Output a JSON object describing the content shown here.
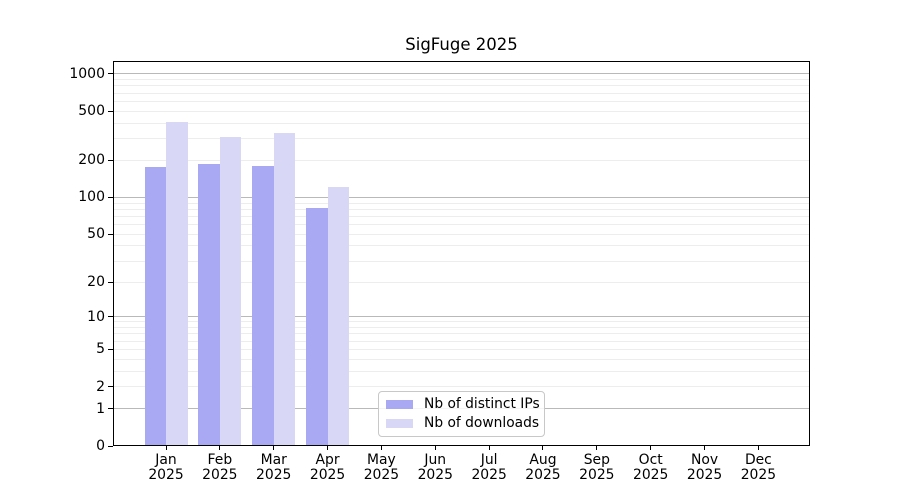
{
  "chart_data": {
    "type": "bar",
    "title": "SigFuge 2025",
    "categories": [
      "Jan 2025",
      "Feb 2025",
      "Mar 2025",
      "Apr 2025",
      "May 2025",
      "Jun 2025",
      "Jul 2025",
      "Aug 2025",
      "Sep 2025",
      "Oct 2025",
      "Nov 2025",
      "Dec 2025"
    ],
    "series": [
      {
        "name": "Nb of distinct IPs",
        "key": "distinct-ips",
        "color": "#a9a9f3",
        "values": [
          178,
          186,
          180,
          82,
          null,
          null,
          null,
          null,
          null,
          null,
          null,
          null
        ]
      },
      {
        "name": "Nb of downloads",
        "key": "downloads",
        "color": "#d8d8f6",
        "values": [
          410,
          307,
          331,
          121,
          null,
          null,
          null,
          null,
          null,
          null,
          null,
          null
        ]
      }
    ],
    "xlabel": "",
    "ylabel": "",
    "yscale": "log1p",
    "ylim": [
      0,
      1270
    ],
    "yticks": [
      0,
      1,
      2,
      5,
      10,
      20,
      50,
      100,
      200,
      500,
      1000
    ],
    "ytick_major_grid": [
      1,
      10,
      100,
      1000
    ],
    "grid": "horizontal major+minor",
    "legend_position": "inside-lower-center",
    "colors": {
      "major_grid": "#b9b9b9",
      "minor_grid": "#ededed",
      "spine": "#000000",
      "text": "#000000",
      "background": "#ffffff"
    }
  }
}
